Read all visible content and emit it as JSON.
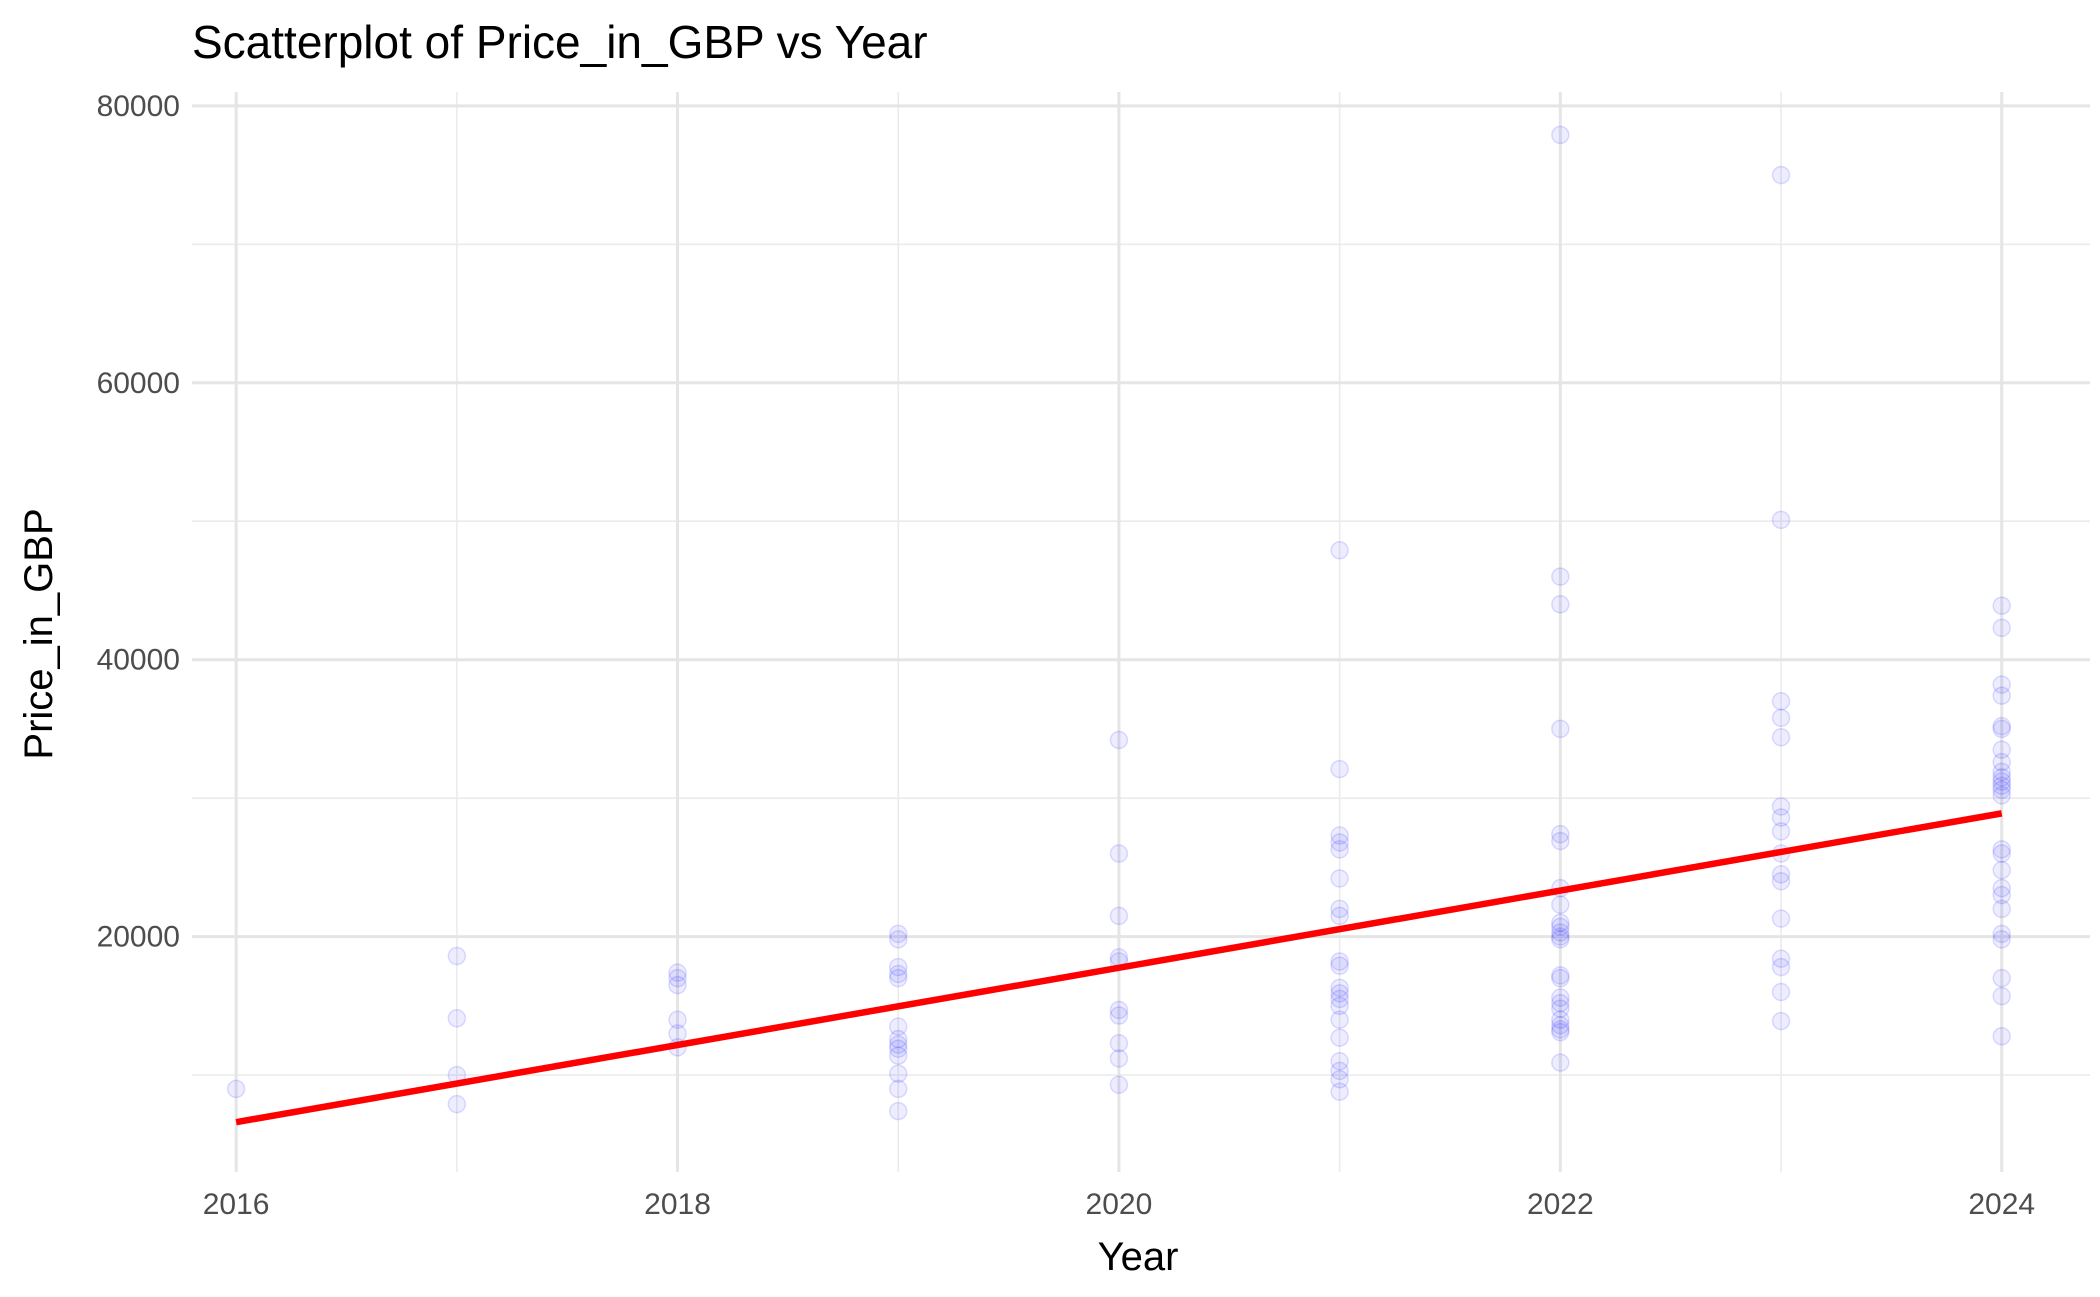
{
  "chart_data": {
    "type": "scatter",
    "title": "Scatterplot of Price_in_GBP vs Year",
    "xlabel": "Year",
    "ylabel": "Price_in_GBP",
    "xlim": [
      2015.8,
      2024.4
    ],
    "ylim": [
      3000,
      81000
    ],
    "x_ticks": [
      2016,
      2018,
      2020,
      2022,
      2024
    ],
    "x_tick_labels": [
      "2016",
      "2018",
      "2020",
      "2022",
      "2024"
    ],
    "y_ticks": [
      20000,
      40000,
      60000,
      80000
    ],
    "y_tick_labels": [
      "20000",
      "40000",
      "60000",
      "80000"
    ],
    "grid": true,
    "legend": "none",
    "point_color": "#0000ff",
    "trend_color": "#ff0000",
    "trend_line": {
      "x": [
        2016,
        2024
      ],
      "y": [
        6600,
        28900
      ]
    },
    "points": [
      [
        2016,
        9000
      ],
      [
        2017,
        18600
      ],
      [
        2017,
        14100
      ],
      [
        2017,
        10000
      ],
      [
        2017,
        7900
      ],
      [
        2018,
        17400
      ],
      [
        2018,
        17000
      ],
      [
        2018,
        16500
      ],
      [
        2018,
        14000
      ],
      [
        2018,
        13000
      ],
      [
        2018,
        12000
      ],
      [
        2019,
        20200
      ],
      [
        2019,
        19800
      ],
      [
        2019,
        17800
      ],
      [
        2019,
        17300
      ],
      [
        2019,
        17000
      ],
      [
        2019,
        13500
      ],
      [
        2019,
        12600
      ],
      [
        2019,
        12200
      ],
      [
        2019,
        11900
      ],
      [
        2019,
        11400
      ],
      [
        2019,
        10100
      ],
      [
        2019,
        9000
      ],
      [
        2019,
        7400
      ],
      [
        2020,
        34200
      ],
      [
        2020,
        26000
      ],
      [
        2020,
        21500
      ],
      [
        2020,
        18500
      ],
      [
        2020,
        18200
      ],
      [
        2020,
        14700
      ],
      [
        2020,
        14300
      ],
      [
        2020,
        12300
      ],
      [
        2020,
        11200
      ],
      [
        2020,
        9300
      ],
      [
        2021,
        47900
      ],
      [
        2021,
        32100
      ],
      [
        2021,
        27300
      ],
      [
        2021,
        26800
      ],
      [
        2021,
        26300
      ],
      [
        2021,
        24200
      ],
      [
        2021,
        22000
      ],
      [
        2021,
        21500
      ],
      [
        2021,
        18200
      ],
      [
        2021,
        17900
      ],
      [
        2021,
        16300
      ],
      [
        2021,
        15900
      ],
      [
        2021,
        15500
      ],
      [
        2021,
        15000
      ],
      [
        2021,
        14000
      ],
      [
        2021,
        12700
      ],
      [
        2021,
        11000
      ],
      [
        2021,
        10300
      ],
      [
        2021,
        9700
      ],
      [
        2021,
        8800
      ],
      [
        2022,
        77900
      ],
      [
        2022,
        46000
      ],
      [
        2022,
        44000
      ],
      [
        2022,
        35000
      ],
      [
        2022,
        27400
      ],
      [
        2022,
        26900
      ],
      [
        2022,
        23500
      ],
      [
        2022,
        22300
      ],
      [
        2022,
        21000
      ],
      [
        2022,
        20700
      ],
      [
        2022,
        20300
      ],
      [
        2022,
        20000
      ],
      [
        2022,
        19800
      ],
      [
        2022,
        17200
      ],
      [
        2022,
        17000
      ],
      [
        2022,
        15600
      ],
      [
        2022,
        15200
      ],
      [
        2022,
        14800
      ],
      [
        2022,
        14000
      ],
      [
        2022,
        13600
      ],
      [
        2022,
        13300
      ],
      [
        2022,
        13100
      ],
      [
        2022,
        10900
      ],
      [
        2023,
        75000
      ],
      [
        2023,
        50100
      ],
      [
        2023,
        37000
      ],
      [
        2023,
        35800
      ],
      [
        2023,
        34400
      ],
      [
        2023,
        29400
      ],
      [
        2023,
        28600
      ],
      [
        2023,
        27600
      ],
      [
        2023,
        26000
      ],
      [
        2023,
        24500
      ],
      [
        2023,
        24000
      ],
      [
        2023,
        21300
      ],
      [
        2023,
        18400
      ],
      [
        2023,
        17800
      ],
      [
        2023,
        16000
      ],
      [
        2023,
        13900
      ],
      [
        2024,
        43900
      ],
      [
        2024,
        42300
      ],
      [
        2024,
        38200
      ],
      [
        2024,
        37400
      ],
      [
        2024,
        35200
      ],
      [
        2024,
        35000
      ],
      [
        2024,
        33500
      ],
      [
        2024,
        32600
      ],
      [
        2024,
        31900
      ],
      [
        2024,
        31500
      ],
      [
        2024,
        31200
      ],
      [
        2024,
        30900
      ],
      [
        2024,
        30600
      ],
      [
        2024,
        30200
      ],
      [
        2024,
        26300
      ],
      [
        2024,
        26000
      ],
      [
        2024,
        24800
      ],
      [
        2024,
        23500
      ],
      [
        2024,
        23000
      ],
      [
        2024,
        22000
      ],
      [
        2024,
        20200
      ],
      [
        2024,
        19800
      ],
      [
        2024,
        17000
      ],
      [
        2024,
        15700
      ],
      [
        2024,
        12800
      ]
    ]
  }
}
